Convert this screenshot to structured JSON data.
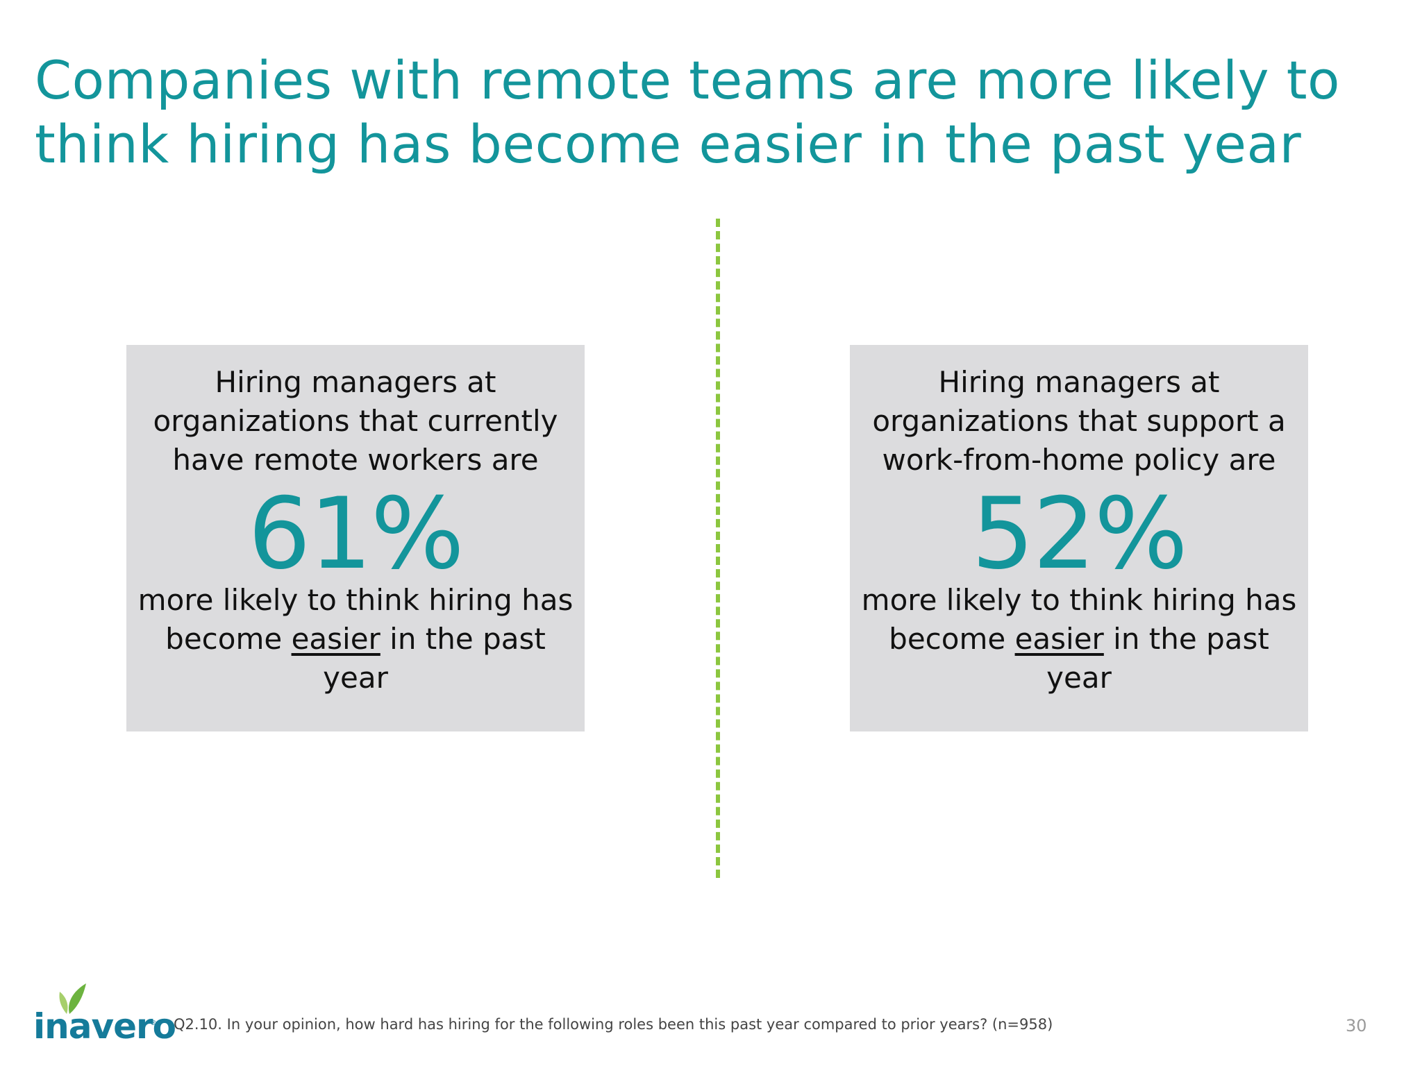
{
  "title": "Companies with remote teams are more likely to think hiring has become easier in the past year",
  "stats": [
    {
      "intro": "Hiring managers at organizations that currently have remote workers are",
      "value": "61%",
      "outro_before": "more likely to think hiring has become ",
      "outro_emphasis": "easier",
      "outro_after": " in the past year"
    },
    {
      "intro": "Hiring managers at organizations that support a work-from-home policy are",
      "value": "52%",
      "outro_before": "more likely to think hiring has become ",
      "outro_emphasis": "easier",
      "outro_after": " in the past year"
    }
  ],
  "footer": {
    "logo_text": "inavero",
    "note": "Q2.10. In your opinion, how hard has hiring for the following roles been this past year compared to prior years? (n=958)",
    "page_number": "30"
  },
  "colors": {
    "accent": "#13959b",
    "divider": "#8cc63f",
    "box_bg": "#dcdcde",
    "logo": "#157b9a"
  }
}
